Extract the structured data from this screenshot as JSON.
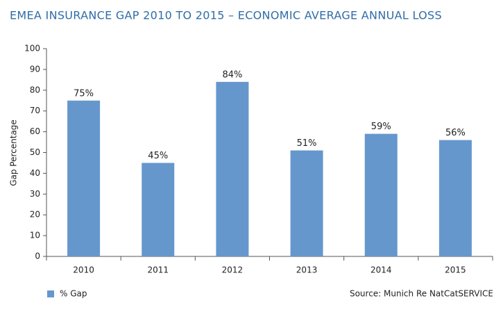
{
  "chart_data": {
    "type": "bar",
    "title": "EMEA INSURANCE GAP 2010 TO 2015  – ECONOMIC AVERAGE ANNUAL LOSS",
    "y_label": "Gap Percentage",
    "source": "Source: Munich Re NatCatSERVICE",
    "categories": [
      "2010",
      "2011",
      "2012",
      "2013",
      "2014",
      "2015"
    ],
    "series": [
      {
        "name": "% Gap",
        "color": "#6597cd",
        "values": [
          75,
          45,
          84,
          51,
          59,
          56
        ],
        "value_labels": [
          "75%",
          "45%",
          "84%",
          "51%",
          "59%",
          "56%"
        ]
      }
    ],
    "ylim": [
      0,
      100
    ],
    "yticks": [
      0,
      10,
      20,
      30,
      40,
      50,
      60,
      70,
      80,
      90,
      100
    ],
    "grid": false,
    "legend": "bottom-left"
  }
}
